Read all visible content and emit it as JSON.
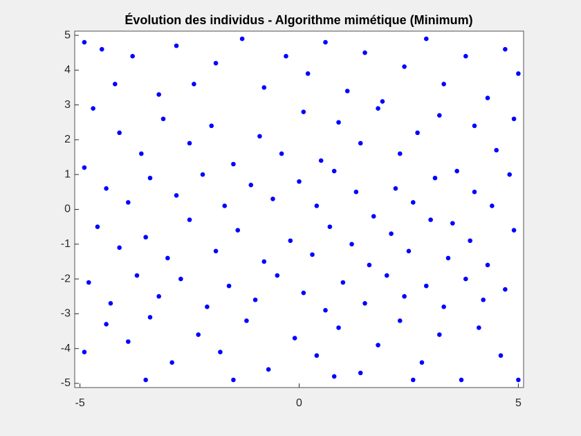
{
  "chart_data": {
    "type": "scatter",
    "title": "Évolution des individus - Algorithme mimétique (Minimum)",
    "color": "#0000ff",
    "xlim": [
      -5.12,
      5.12
    ],
    "ylim": [
      -5.12,
      5.12
    ],
    "xticks": [
      -5,
      0,
      5
    ],
    "yticks": [
      -5,
      -4,
      -3,
      -2,
      -1,
      0,
      1,
      2,
      3,
      4,
      5
    ],
    "x": [
      -4.9,
      -4.5,
      -4.2,
      -3.8,
      -3.2,
      -2.8,
      -2.4,
      -1.9,
      -1.3,
      -0.8,
      -0.3,
      0.2,
      0.6,
      1.1,
      1.5,
      1.9,
      2.4,
      2.9,
      3.3,
      3.8,
      4.3,
      4.7,
      5.0,
      -4.7,
      -4.1,
      -3.6,
      -3.1,
      -2.5,
      -2.0,
      -1.5,
      -0.9,
      -0.4,
      0.1,
      0.5,
      0.9,
      1.4,
      1.8,
      2.3,
      2.7,
      3.2,
      3.6,
      4.0,
      4.5,
      4.9,
      -4.9,
      -4.4,
      -3.9,
      -3.4,
      -2.8,
      -2.2,
      -1.7,
      -1.1,
      -0.6,
      0.0,
      0.4,
      0.8,
      1.3,
      1.7,
      2.2,
      2.6,
      3.1,
      3.5,
      4.0,
      4.4,
      4.8,
      -4.6,
      -4.1,
      -3.5,
      -3.0,
      -2.5,
      -1.9,
      -1.4,
      -0.8,
      -0.2,
      0.3,
      0.7,
      1.2,
      1.6,
      2.1,
      2.5,
      3.0,
      3.4,
      3.9,
      4.3,
      4.9,
      -4.8,
      -4.3,
      -3.7,
      -3.2,
      -2.7,
      -2.1,
      -1.6,
      -1.0,
      -0.5,
      0.1,
      0.6,
      1.0,
      1.5,
      2.0,
      2.4,
      2.9,
      3.3,
      3.8,
      4.2,
      4.7,
      -4.9,
      -4.4,
      -3.9,
      -3.4,
      -2.9,
      -2.3,
      -1.8,
      -1.2,
      -0.7,
      -0.1,
      0.4,
      0.9,
      1.4,
      1.8,
      2.3,
      2.8,
      3.2,
      3.7,
      4.1,
      4.6,
      5.0,
      -3.5,
      -1.5,
      0.8,
      2.6
    ],
    "y": [
      4.8,
      4.6,
      3.6,
      4.4,
      3.3,
      4.7,
      3.6,
      4.2,
      4.9,
      3.5,
      4.4,
      3.9,
      4.8,
      3.4,
      4.5,
      3.1,
      4.1,
      4.9,
      3.6,
      4.4,
      3.2,
      4.6,
      3.9,
      2.9,
      2.2,
      1.6,
      2.6,
      1.9,
      2.4,
      1.3,
      2.1,
      1.6,
      2.8,
      1.4,
      2.5,
      1.9,
      2.9,
      1.6,
      2.2,
      2.7,
      1.1,
      2.4,
      1.7,
      2.6,
      1.2,
      0.6,
      0.2,
      0.9,
      0.4,
      1.0,
      0.1,
      0.7,
      0.3,
      0.8,
      0.1,
      1.1,
      0.5,
      -0.2,
      0.6,
      0.2,
      0.9,
      -0.4,
      0.5,
      0.1,
      1.0,
      -0.5,
      -1.1,
      -0.8,
      -1.4,
      -0.3,
      -1.2,
      -0.6,
      -1.5,
      -0.9,
      -1.3,
      -0.5,
      -1.0,
      -1.6,
      -0.7,
      -1.2,
      -0.3,
      -1.4,
      -0.9,
      -1.6,
      -0.6,
      -2.1,
      -2.7,
      -1.9,
      -2.5,
      -2.0,
      -2.8,
      -2.2,
      -2.6,
      -1.9,
      -2.4,
      -2.9,
      -2.1,
      -2.7,
      -1.9,
      -2.5,
      -2.2,
      -2.8,
      -2.0,
      -2.6,
      -2.3,
      -4.1,
      -3.3,
      -3.8,
      -3.1,
      -4.4,
      -3.6,
      -4.1,
      -3.2,
      -4.6,
      -3.7,
      -4.2,
      -3.4,
      -4.7,
      -3.9,
      -3.2,
      -4.4,
      -3.6,
      -4.9,
      -3.4,
      -4.2,
      -4.9,
      -4.9,
      -4.9,
      -4.8,
      -4.9
    ]
  }
}
